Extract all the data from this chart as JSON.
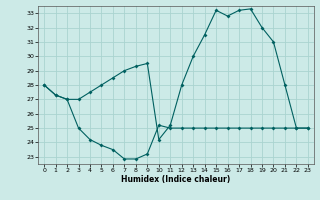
{
  "xlabel": "Humidex (Indice chaleur)",
  "background_color": "#cceae7",
  "grid_color": "#aad4d0",
  "line_color": "#006060",
  "xlim": [
    -0.5,
    23.5
  ],
  "ylim": [
    22.5,
    33.5
  ],
  "xticks": [
    0,
    1,
    2,
    3,
    4,
    5,
    6,
    7,
    8,
    9,
    10,
    11,
    12,
    13,
    14,
    15,
    16,
    17,
    18,
    19,
    20,
    21,
    22,
    23
  ],
  "yticks": [
    23,
    24,
    25,
    26,
    27,
    28,
    29,
    30,
    31,
    32,
    33
  ],
  "line1_x": [
    0,
    1,
    2,
    3,
    4,
    5,
    6,
    7,
    8,
    9,
    10,
    11,
    12,
    13,
    14,
    15,
    16,
    17,
    18,
    19,
    20,
    21,
    22,
    23
  ],
  "line1_y": [
    28.0,
    27.3,
    27.0,
    25.0,
    24.2,
    23.8,
    23.5,
    22.85,
    22.85,
    23.2,
    25.2,
    25.0,
    25.0,
    25.0,
    25.0,
    25.0,
    25.0,
    25.0,
    25.0,
    25.0,
    25.0,
    25.0,
    25.0,
    25.0
  ],
  "line2_x": [
    0,
    1,
    2,
    3,
    4,
    5,
    6,
    7,
    8,
    9,
    10,
    11,
    12,
    13,
    14,
    15,
    16,
    17,
    18,
    19,
    20,
    21,
    22,
    23
  ],
  "line2_y": [
    28.0,
    27.3,
    27.0,
    27.0,
    27.5,
    28.0,
    28.5,
    29.0,
    29.3,
    29.5,
    24.2,
    25.2,
    28.0,
    30.0,
    31.5,
    33.2,
    32.8,
    33.2,
    33.3,
    32.0,
    31.0,
    28.0,
    25.0,
    25.0
  ]
}
